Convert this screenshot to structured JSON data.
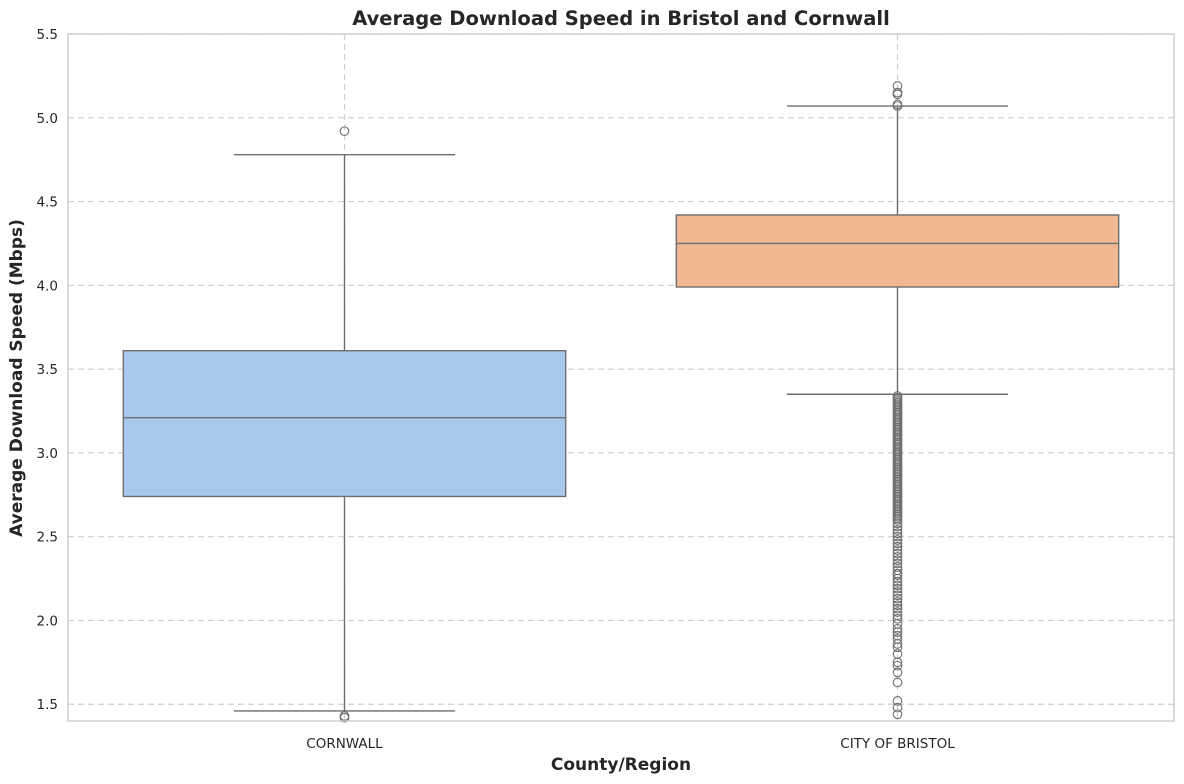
{
  "chart_data": {
    "type": "box",
    "title": "Average Download Speed in Bristol and Cornwall",
    "xlabel": "County/Region",
    "ylabel": "Average Download Speed (Mbps)",
    "ylim": [
      1.4,
      5.5
    ],
    "y_ticks": [
      "1.5",
      "2.0",
      "2.5",
      "3.0",
      "3.5",
      "4.0",
      "4.5",
      "5.0",
      "5.5"
    ],
    "grid": true,
    "categories": [
      "CORNWALL",
      "CITY OF BRISTOL"
    ],
    "colors": {
      "CORNWALL": "#a9c8ed",
      "CITY OF BRISTOL": "#f0b790"
    },
    "boxes": [
      {
        "category": "CORNWALL",
        "whisker_low": 1.46,
        "q1": 2.74,
        "median": 3.21,
        "q3": 3.61,
        "whisker_high": 4.78,
        "outliers": [
          4.92,
          1.43,
          1.42
        ]
      },
      {
        "category": "CITY OF BRISTOL",
        "whisker_low": 3.35,
        "q1": 3.99,
        "median": 4.25,
        "q3": 4.42,
        "whisker_high": 5.07,
        "outliers": [
          5.19,
          5.15,
          5.14,
          5.08,
          5.07,
          3.34,
          3.33,
          3.32,
          3.31,
          3.3,
          3.29,
          3.28,
          3.27,
          3.26,
          3.25,
          3.24,
          3.23,
          3.22,
          3.21,
          3.2,
          3.19,
          3.18,
          3.17,
          3.16,
          3.15,
          3.14,
          3.13,
          3.12,
          3.11,
          3.1,
          3.09,
          3.08,
          3.07,
          3.06,
          3.05,
          3.04,
          3.03,
          3.02,
          3.01,
          3.0,
          2.99,
          2.98,
          2.97,
          2.96,
          2.95,
          2.94,
          2.93,
          2.92,
          2.91,
          2.9,
          2.89,
          2.88,
          2.87,
          2.86,
          2.85,
          2.84,
          2.83,
          2.82,
          2.81,
          2.8,
          2.79,
          2.78,
          2.77,
          2.76,
          2.75,
          2.74,
          2.73,
          2.72,
          2.71,
          2.7,
          2.69,
          2.68,
          2.67,
          2.66,
          2.65,
          2.64,
          2.63,
          2.62,
          2.61,
          2.6,
          2.58,
          2.56,
          2.54,
          2.52,
          2.5,
          2.48,
          2.46,
          2.44,
          2.42,
          2.4,
          2.38,
          2.36,
          2.34,
          2.32,
          2.3,
          2.28,
          2.27,
          2.25,
          2.23,
          2.21,
          2.19,
          2.17,
          2.15,
          2.13,
          2.11,
          2.09,
          2.07,
          2.05,
          2.03,
          2.01,
          1.98,
          1.95,
          1.93,
          1.91,
          1.89,
          1.86,
          1.84,
          1.8,
          1.75,
          1.73,
          1.69,
          1.63,
          1.52,
          1.48,
          1.44
        ]
      }
    ]
  }
}
